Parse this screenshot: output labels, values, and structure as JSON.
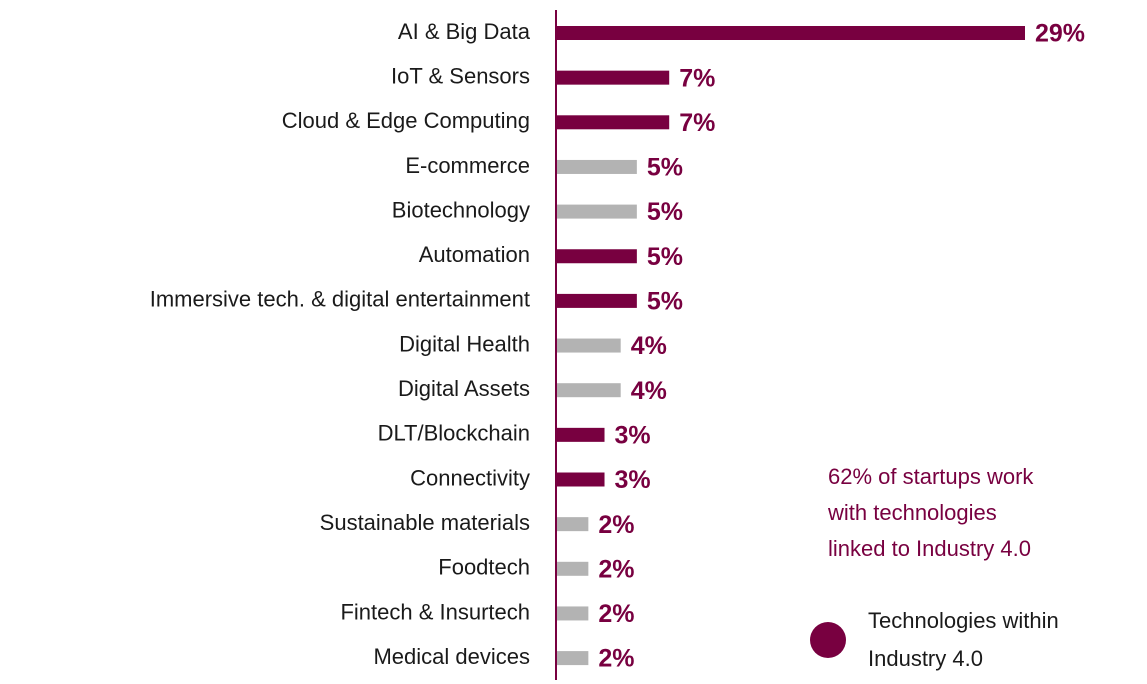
{
  "chart_data": {
    "type": "bar",
    "orientation": "horizontal",
    "categories": [
      "AI & Big Data",
      "IoT & Sensors",
      "Cloud & Edge Computing",
      "E-commerce",
      "Biotechnology",
      "Automation",
      "Immersive tech. & digital entertainment",
      "Digital Health",
      "Digital Assets",
      "DLT/Blockchain",
      "Connectivity",
      "Sustainable materials",
      "Foodtech",
      "Fintech & Insurtech",
      "Medical devices"
    ],
    "values": [
      29,
      7,
      7,
      5,
      5,
      5,
      5,
      4,
      4,
      3,
      3,
      2,
      2,
      2,
      2
    ],
    "value_labels": [
      "29%",
      "7%",
      "7%",
      "5%",
      "5%",
      "5%",
      "5%",
      "4%",
      "4%",
      "3%",
      "3%",
      "2%",
      "2%",
      "2%",
      "2%"
    ],
    "colors": [
      "#780040",
      "#780040",
      "#780040",
      "#b3b3b3",
      "#b3b3b3",
      "#780040",
      "#780040",
      "#b3b3b3",
      "#b3b3b3",
      "#780040",
      "#780040",
      "#b3b3b3",
      "#b3b3b3",
      "#b3b3b3",
      "#b3b3b3"
    ],
    "label_color": "#780040",
    "xlim": [
      0,
      29
    ],
    "annotation": [
      "62% of startups work",
      "with technologies",
      "linked to Industry 4.0"
    ],
    "legend": {
      "label": [
        "Technologies within",
        "Industry 4.0"
      ],
      "color": "#780040"
    }
  }
}
